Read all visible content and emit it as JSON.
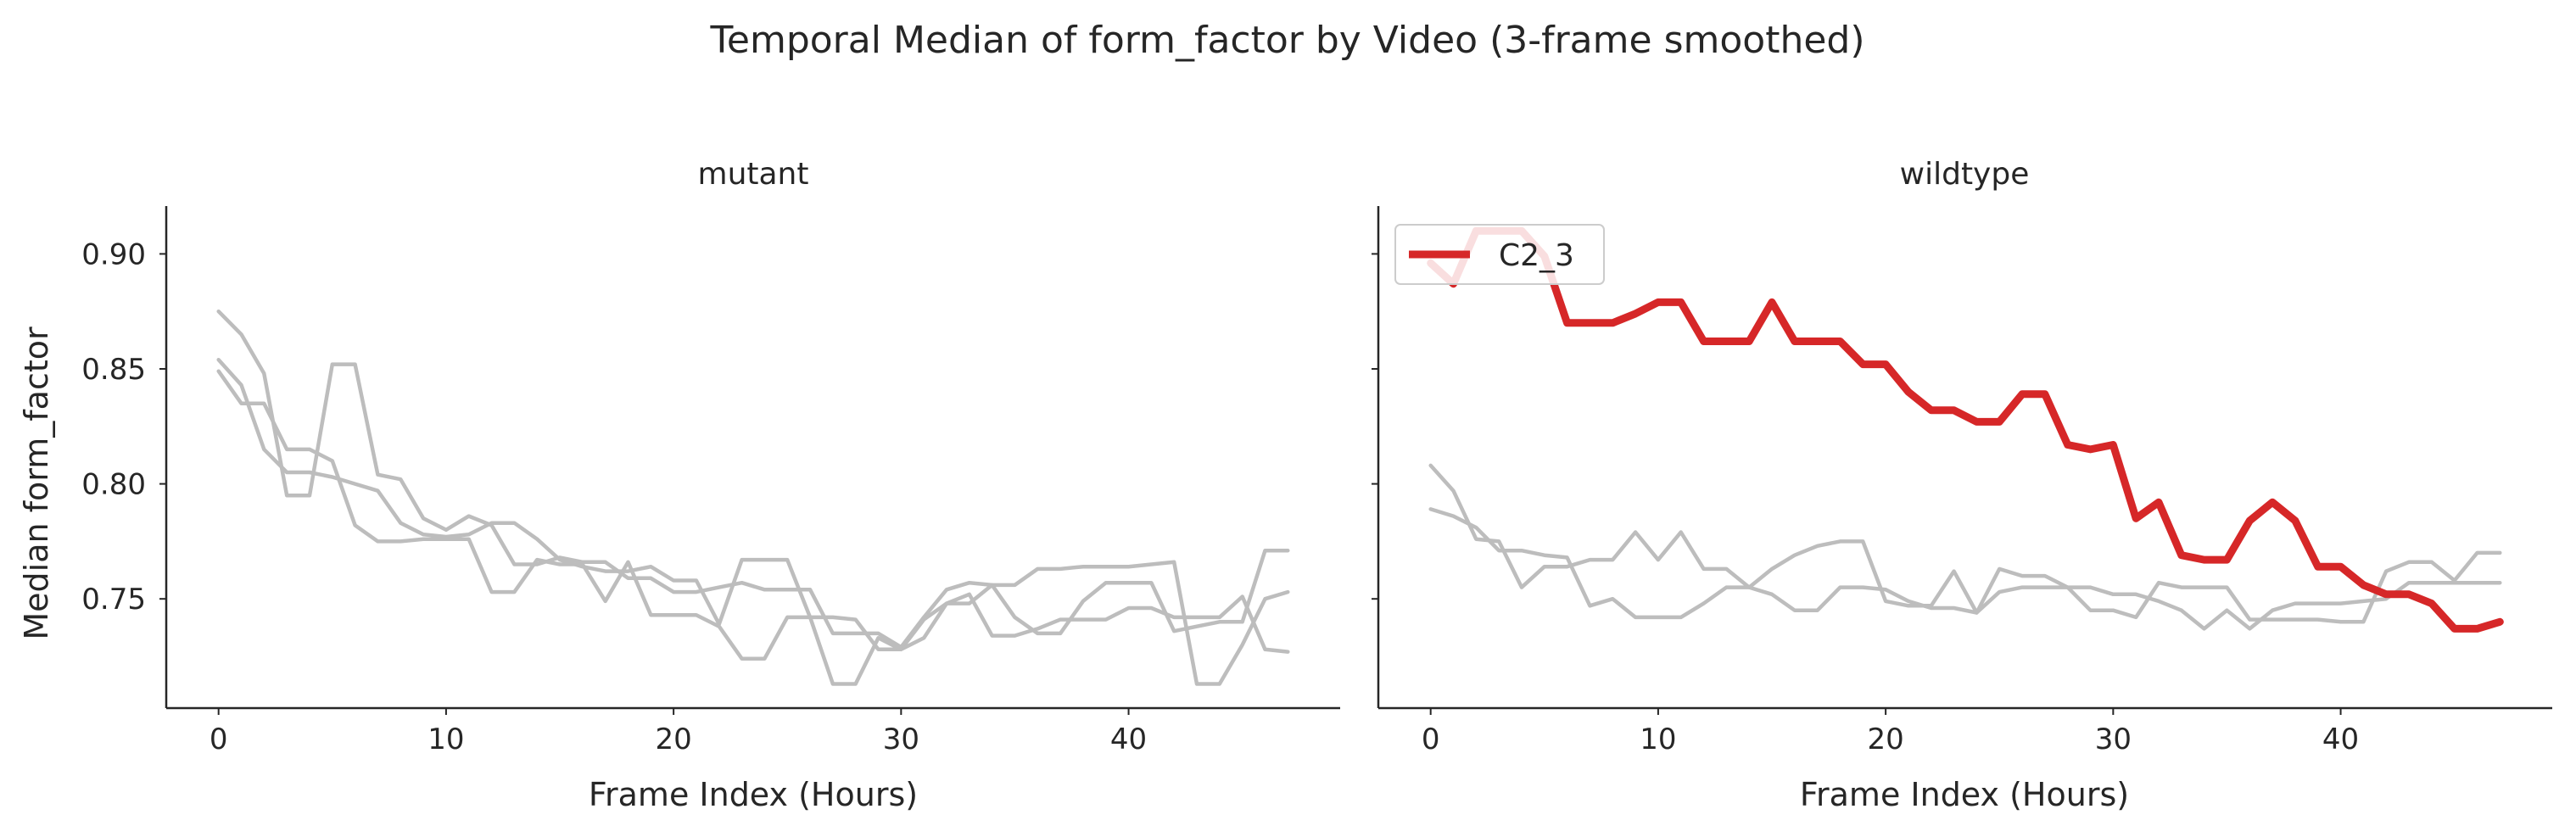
{
  "chart_data": {
    "type": "line",
    "title": "Temporal Median of form_factor by Video (3-frame smoothed)",
    "ylabel": "Median form_factor",
    "xlabel": "Frame Index (Hours)",
    "xlim": [
      -2.3,
      49.3
    ],
    "ylim": [
      0.7025,
      0.9208
    ],
    "x_ticks": [
      0,
      10,
      20,
      30,
      40
    ],
    "y_ticks": [
      0.75,
      0.8,
      0.85,
      0.9
    ],
    "y_tick_labels": [
      "0.75",
      "0.80",
      "0.85",
      "0.90"
    ],
    "grid": false,
    "colors": {
      "background_series": "#bdbdbd",
      "highlight": "#d62728",
      "axis": "#262626"
    },
    "panels": [
      {
        "facet": "mutant",
        "series": [
          {
            "highlight": false,
            "values": [
              0.854,
              0.843,
              0.815,
              0.805,
              0.805,
              0.803,
              0.8,
              0.797,
              0.783,
              0.778,
              0.777,
              0.778,
              0.783,
              0.783,
              0.776,
              0.767,
              0.764,
              0.762,
              0.762,
              0.764,
              0.758,
              0.758,
              0.739,
              0.767,
              0.767,
              0.767,
              0.742,
              0.742,
              0.741,
              0.728,
              0.728,
              0.741,
              0.748,
              0.752,
              0.734,
              0.734,
              0.737,
              0.741,
              0.741,
              0.741,
              0.746,
              0.746,
              0.742,
              0.742,
              0.742,
              0.751,
              0.728,
              0.727
            ]
          },
          {
            "highlight": false,
            "values": [
              0.849,
              0.835,
              0.835,
              0.815,
              0.815,
              0.81,
              0.782,
              0.775,
              0.775,
              0.776,
              0.776,
              0.776,
              0.753,
              0.753,
              0.767,
              0.765,
              0.765,
              0.749,
              0.766,
              0.743,
              0.743,
              0.743,
              0.738,
              0.724,
              0.724,
              0.742,
              0.742,
              0.713,
              0.713,
              0.733,
              0.728,
              0.733,
              0.748,
              0.748,
              0.756,
              0.742,
              0.735,
              0.735,
              0.749,
              0.757,
              0.757,
              0.757,
              0.736,
              0.738,
              0.74,
              0.74,
              0.771,
              0.771
            ]
          },
          {
            "highlight": false,
            "values": [
              0.875,
              0.865,
              0.848,
              0.795,
              0.795,
              0.852,
              0.852,
              0.804,
              0.802,
              0.785,
              0.78,
              0.786,
              0.782,
              0.765,
              0.765,
              0.768,
              0.766,
              0.766,
              0.759,
              0.759,
              0.753,
              0.753,
              0.755,
              0.757,
              0.754,
              0.754,
              0.754,
              0.735,
              0.735,
              0.735,
              0.729,
              0.742,
              0.754,
              0.757,
              0.756,
              0.756,
              0.763,
              0.763,
              0.764,
              0.764,
              0.764,
              0.765,
              0.766,
              0.713,
              0.713,
              0.73,
              0.75,
              0.753
            ]
          }
        ]
      },
      {
        "facet": "wildtype",
        "series": [
          {
            "highlight": false,
            "values": [
              0.789,
              0.786,
              0.781,
              0.771,
              0.771,
              0.769,
              0.768,
              0.747,
              0.75,
              0.742,
              0.742,
              0.742,
              0.748,
              0.755,
              0.755,
              0.752,
              0.745,
              0.745,
              0.755,
              0.755,
              0.754,
              0.749,
              0.746,
              0.746,
              0.744,
              0.753,
              0.755,
              0.755,
              0.755,
              0.755,
              0.752,
              0.752,
              0.749,
              0.745,
              0.737,
              0.745,
              0.737,
              0.745,
              0.748,
              0.748,
              0.748,
              0.749,
              0.75,
              0.757,
              0.757,
              0.757,
              0.757,
              0.757
            ]
          },
          {
            "highlight": false,
            "values": [
              0.808,
              0.797,
              0.776,
              0.775,
              0.755,
              0.764,
              0.764,
              0.767,
              0.767,
              0.779,
              0.767,
              0.779,
              0.763,
              0.763,
              0.755,
              0.763,
              0.769,
              0.773,
              0.775,
              0.775,
              0.749,
              0.747,
              0.747,
              0.762,
              0.744,
              0.763,
              0.76,
              0.76,
              0.755,
              0.745,
              0.745,
              0.742,
              0.757,
              0.755,
              0.755,
              0.755,
              0.741,
              0.741,
              0.741,
              0.741,
              0.74,
              0.74,
              0.762,
              0.766,
              0.766,
              0.758,
              0.77,
              0.77
            ]
          },
          {
            "name": "C2_3",
            "highlight": true,
            "values": [
              0.896,
              0.887,
              0.91,
              0.91,
              0.91,
              0.899,
              0.87,
              0.87,
              0.87,
              0.874,
              0.879,
              0.879,
              0.862,
              0.862,
              0.862,
              0.879,
              0.862,
              0.862,
              0.862,
              0.852,
              0.852,
              0.84,
              0.832,
              0.832,
              0.827,
              0.827,
              0.839,
              0.839,
              0.817,
              0.815,
              0.817,
              0.785,
              0.792,
              0.769,
              0.767,
              0.767,
              0.784,
              0.792,
              0.784,
              0.764,
              0.764,
              0.756,
              0.752,
              0.752,
              0.748,
              0.737,
              0.737,
              0.74
            ]
          }
        ]
      }
    ]
  }
}
